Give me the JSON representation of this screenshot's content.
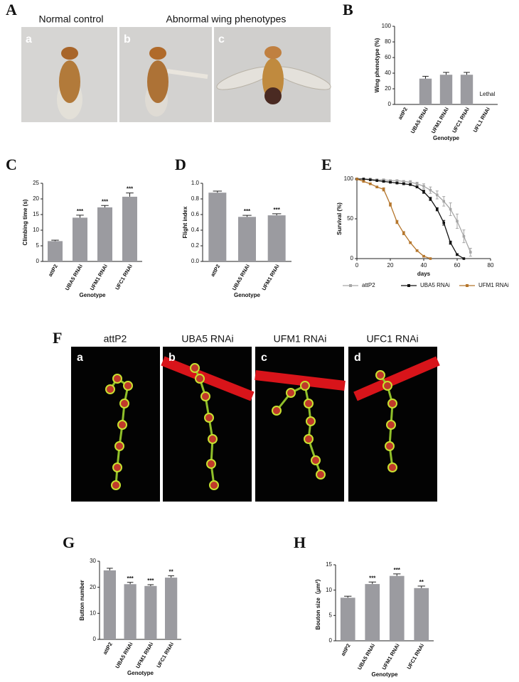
{
  "figure": {
    "panel_labels": [
      "A",
      "B",
      "C",
      "D",
      "E",
      "F",
      "G",
      "H"
    ]
  },
  "photos_A": {
    "headers": [
      "Normal control",
      "Abnormal wing phenotypes"
    ],
    "sublabels": [
      "a",
      "b",
      "c"
    ]
  },
  "photos_F": {
    "titles": [
      "attP2",
      "UBA5 RNAi",
      "UFM1 RNAi",
      "UFC1 RNAi"
    ],
    "sublabels": [
      "a",
      "b",
      "c",
      "d"
    ]
  },
  "chart_data": [
    {
      "type": "bar",
      "ylabel": "Wing phenotype (%)",
      "xlabel": "Genotype",
      "categories": [
        "attP2",
        "UBA5 RNAi",
        "UFM1 RNAi",
        "UFC1 RNAi",
        "UFL1 RNAi"
      ],
      "values": [
        0,
        33,
        38,
        38,
        null
      ],
      "errors": [
        null,
        3,
        3,
        3,
        null
      ],
      "annotation": "Lethal",
      "color": "#9b9ba0",
      "ylim": [
        0,
        100
      ],
      "yticks": [
        0,
        20,
        40,
        60,
        80,
        100
      ]
    },
    {
      "type": "bar",
      "ylabel": "Climbing time (s)",
      "xlabel": "Genotype",
      "categories": [
        "attP2",
        "UBA5 RNAi",
        "UFM1 RNAi",
        "UFC1 RNAi"
      ],
      "values": [
        6.5,
        14,
        17.3,
        20.7
      ],
      "errors": [
        0.3,
        0.8,
        0.6,
        1.2
      ],
      "significance": [
        null,
        "***",
        "***",
        "***"
      ],
      "color": "#9b9ba0",
      "ylim": [
        0,
        25
      ],
      "yticks": [
        0,
        5,
        10,
        15,
        20,
        25
      ]
    },
    {
      "type": "bar",
      "ylabel": "Flight index",
      "xlabel": "Genotype",
      "categories": [
        "attP2",
        "UBA5 RNAi",
        "UFM1 RNAi"
      ],
      "values": [
        0.88,
        0.57,
        0.59
      ],
      "errors": [
        0.02,
        0.02,
        0.02
      ],
      "significance": [
        null,
        "***",
        "***"
      ],
      "color": "#9b9ba0",
      "ylim": [
        0,
        1
      ],
      "yticks": [
        {
          "value": 0,
          "label": "0.0"
        },
        0.2,
        0.4,
        0.6,
        0.8,
        {
          "value": 1,
          "label": "1.0"
        }
      ]
    },
    {
      "type": "line",
      "ylabel": "Survival (%)",
      "xlabel": "days",
      "x": [
        0,
        4,
        8,
        12,
        16,
        20,
        24,
        28,
        32,
        36,
        40,
        44,
        48,
        52,
        56,
        60,
        64,
        68
      ],
      "series": [
        {
          "name": "attP2",
          "color": "#a6a6a6",
          "values": [
            100,
            100,
            100,
            99,
            99,
            98,
            98,
            97,
            96,
            94,
            91,
            86,
            80,
            72,
            62,
            47,
            28,
            8
          ],
          "errors": [
            0,
            0,
            0,
            1,
            1,
            1,
            1,
            1,
            2,
            2,
            3,
            4,
            5,
            6,
            8,
            9,
            8,
            5
          ]
        },
        {
          "name": "UBA5 RNAi",
          "color": "#111111",
          "values": [
            100,
            100,
            99,
            98,
            97,
            96,
            95,
            94,
            93,
            90,
            84,
            75,
            62,
            45,
            20,
            5,
            0,
            null
          ],
          "errors": [
            0,
            0,
            0,
            0,
            1,
            1,
            1,
            1,
            1,
            1,
            2,
            2,
            2,
            3,
            2,
            1,
            0,
            null
          ]
        },
        {
          "name": "UFM1 RNAi",
          "color": "#b5762c",
          "values": [
            100,
            97,
            94,
            90,
            87,
            68,
            46,
            32,
            20,
            10,
            3,
            0,
            null,
            null,
            null,
            null,
            null,
            null
          ],
          "errors": [
            0,
            1,
            1,
            1,
            2,
            2,
            2,
            2,
            1,
            1,
            1,
            0,
            null,
            null,
            null,
            null,
            null,
            null
          ]
        }
      ],
      "xlim": [
        0,
        80
      ],
      "xticks": [
        0,
        20,
        40,
        60,
        80
      ],
      "ylim": [
        0,
        100
      ],
      "yticks": [
        0,
        50,
        100
      ],
      "legend": "bottom"
    },
    {
      "type": "bar",
      "ylabel": "Button number",
      "xlabel": "Genotype",
      "categories": [
        "attP2",
        "UBA5 RNAi",
        "UFM1 RNAi",
        "UFC1 RNAi"
      ],
      "values": [
        26.5,
        21.2,
        20.5,
        23.7
      ],
      "errors": [
        0.8,
        0.7,
        0.5,
        0.7
      ],
      "significance": [
        null,
        "***",
        "***",
        "**"
      ],
      "color": "#9b9ba0",
      "ylim": [
        0,
        30
      ],
      "yticks": [
        0,
        10,
        20,
        30
      ]
    },
    {
      "type": "bar",
      "ylabel": "Bouton size（μm²）",
      "xlabel": "Genotype",
      "categories": [
        "attP2",
        "UBA5 RNAi",
        "UFM1 RNAi",
        "UFC1 RNAi"
      ],
      "values": [
        8.5,
        11.2,
        12.8,
        10.4
      ],
      "errors": [
        0.3,
        0.4,
        0.4,
        0.4
      ],
      "significance": [
        null,
        "***",
        "***",
        "**"
      ],
      "color": "#9b9ba0",
      "ylim": [
        0,
        15
      ],
      "yticks": [
        0,
        5,
        10,
        15
      ]
    }
  ]
}
